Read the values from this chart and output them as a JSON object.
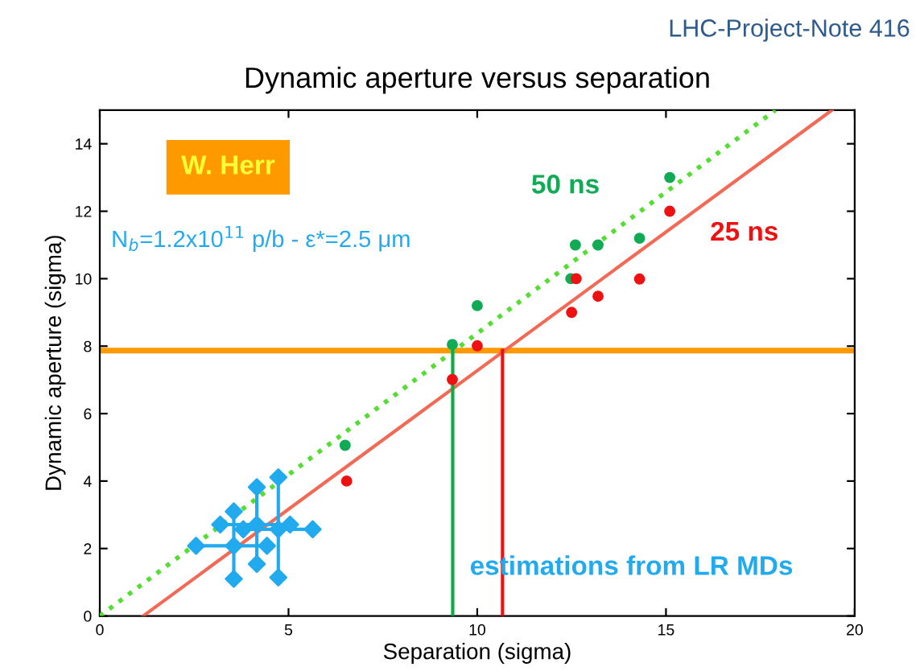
{
  "chart_data": {
    "type": "scatter",
    "title": "Dynamic aperture versus separation",
    "xlabel": "Separation (sigma)",
    "ylabel": "Dynamic aperture (sigma)",
    "xlim": [
      0,
      20
    ],
    "xticks": [
      0,
      5,
      10,
      15,
      20
    ],
    "ylim": [
      0,
      15
    ],
    "yticks": [
      0,
      2,
      4,
      6,
      8,
      10,
      12,
      14
    ],
    "grid": false,
    "legend": false,
    "annotations": [
      "LHC-Project-Note 416",
      "W. Herr",
      "N$_{b}$=1.2x10$^{11}$ p/b - ε*=2.5 μm",
      "estimations from LR MDs"
    ],
    "ref_lines": [
      {
        "axis": "y",
        "value": 7.87,
        "color": "#ff9900"
      }
    ],
    "series": [
      {
        "type": "line",
        "color": "#55dd33",
        "line_style": "dotted",
        "marker": "none",
        "x": [
          0,
          17.9
        ],
        "values": [
          0,
          15
        ]
      },
      {
        "type": "line",
        "color": "#f26a55",
        "line_style": "solid",
        "marker": "none",
        "x": [
          1.15,
          19.4
        ],
        "values": [
          0,
          15
        ]
      },
      {
        "type": "line",
        "color": "#11aa44",
        "line_style": "solid",
        "marker": "none",
        "x": [
          9.35,
          9.35
        ],
        "values": [
          0,
          7.87
        ]
      },
      {
        "type": "line",
        "color": "#ee1111",
        "line_style": "solid",
        "marker": "none",
        "x": [
          10.67,
          10.67
        ],
        "values": [
          0,
          7.87
        ]
      },
      {
        "name": "50 ns",
        "color": "#11aa55",
        "marker": "circle",
        "x": [
          6.5,
          9.34,
          10.0,
          12.48,
          12.6,
          13.2,
          14.3,
          15.1
        ],
        "values": [
          5.06,
          8.05,
          9.2,
          10.0,
          11.0,
          11.0,
          11.2,
          13.0
        ]
      },
      {
        "name": "25 ns",
        "color": "#ee1111",
        "marker": "circle",
        "x": [
          6.54,
          9.34,
          10.0,
          12.5,
          12.62,
          13.2,
          14.3,
          15.1
        ],
        "values": [
          4.0,
          7.01,
          8.01,
          9.0,
          10.0,
          9.48,
          9.99,
          12.0
        ]
      },
      {
        "type": "scatter",
        "color": "#22aaee",
        "marker": "diamond",
        "x": [
          3.55,
          4.16,
          4.73,
          2.55,
          4.43,
          3.55,
          3.55,
          3.19,
          5.04,
          4.16,
          4.16,
          3.8,
          5.64,
          4.73,
          4.73
        ],
        "values": [
          2.08,
          2.71,
          2.57,
          2.08,
          2.08,
          1.1,
          3.1,
          2.71,
          2.71,
          1.54,
          3.82,
          2.57,
          2.57,
          1.14,
          4.11
        ],
        "errors": [
          [
            1.1,
            3.1
          ],
          [
            1.54,
            3.82
          ],
          [
            1.14,
            4.11
          ],
          null,
          null,
          null,
          null,
          null,
          null,
          null,
          null,
          null,
          null,
          null,
          null
        ],
        "xerrors": [
          [
            2.55,
            4.43
          ],
          [
            3.19,
            5.04
          ],
          [
            3.8,
            5.64
          ],
          null,
          null,
          null,
          null,
          null,
          null,
          null,
          null,
          null,
          null,
          null,
          null
        ]
      }
    ]
  }
}
